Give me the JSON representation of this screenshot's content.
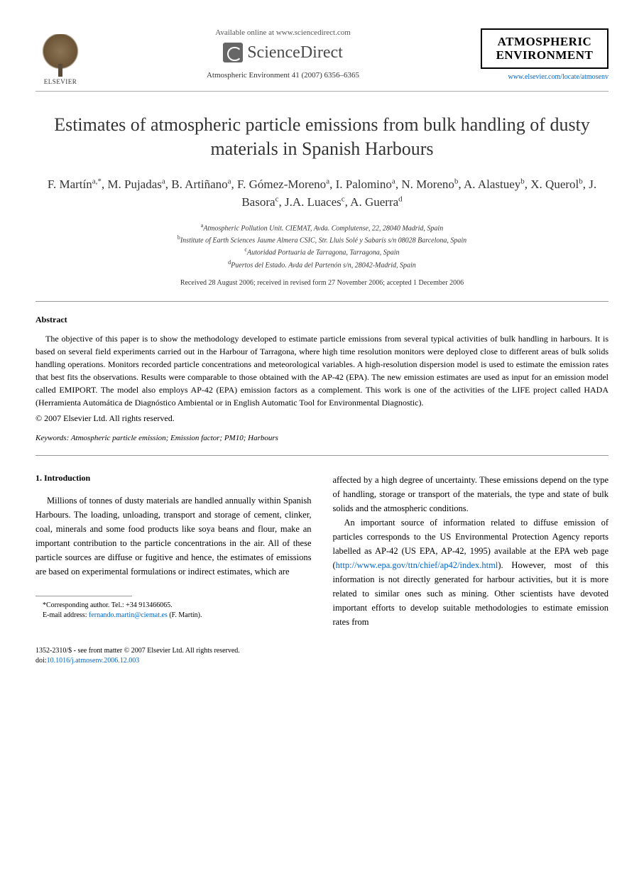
{
  "header": {
    "available_text": "Available online at www.sciencedirect.com",
    "sciencedirect_label": "ScienceDirect",
    "elsevier_label": "ELSEVIER",
    "citation": "Atmospheric Environment 41 (2007) 6356–6365",
    "journal_name_line1": "ATMOSPHERIC",
    "journal_name_line2": "ENVIRONMENT",
    "journal_url": "www.elsevier.com/locate/atmosenv"
  },
  "article": {
    "title": "Estimates of atmospheric particle emissions from bulk handling of dusty materials in Spanish Harbours",
    "authors_html": "F. Martín<sup>a,*</sup>, M. Pujadas<sup>a</sup>, B. Artiñano<sup>a</sup>, F. Gómez-Moreno<sup>a</sup>, I. Palomino<sup>a</sup>, N. Moreno<sup>b</sup>, A. Alastuey<sup>b</sup>, X. Querol<sup>b</sup>, J. Basora<sup>c</sup>, J.A. Luaces<sup>c</sup>, A. Guerra<sup>d</sup>",
    "affiliations": [
      {
        "sup": "a",
        "text": "Atmospheric Pollution Unit. CIEMAT, Avda. Complutense, 22, 28040 Madrid, Spain"
      },
      {
        "sup": "b",
        "text": "Institute of Earth Sciences Jaume Almera CSIC, Str. Lluis Solé y Sabarís s/n 08028 Barcelona, Spain"
      },
      {
        "sup": "c",
        "text": "Autoridad Portuaria de Tarragona, Tarragona, Spain"
      },
      {
        "sup": "d",
        "text": "Puertos del Estado. Avda del Partenón s/n, 28042-Madrid, Spain"
      }
    ],
    "dates": "Received 28 August 2006; received in revised form 27 November 2006; accepted 1 December 2006"
  },
  "abstract": {
    "heading": "Abstract",
    "text": "The objective of this paper is to show the methodology developed to estimate particle emissions from several typical activities of bulk handling in harbours. It is based on several field experiments carried out in the Harbour of Tarragona, where high time resolution monitors were deployed close to different areas of bulk solids handling operations. Monitors recorded particle concentrations and meteorological variables. A high-resolution dispersion model is used to estimate the emission rates that best fits the observations. Results were comparable to those obtained with the AP-42 (EPA). The new emission estimates are used as input for an emission model called EMIPORT. The model also employs AP-42 (EPA) emission factors as a complement. This work is one of the activities of the LIFE project called HADA (Herramienta Automática de Diagnóstico Ambiental or in English Automatic Tool for Environmental Diagnostic).",
    "copyright": "© 2007 Elsevier Ltd. All rights reserved."
  },
  "keywords": {
    "label": "Keywords:",
    "text": "Atmospheric particle emission; Emission factor; PM10; Harbours"
  },
  "introduction": {
    "heading": "1. Introduction",
    "col1_para1": "Millions of tonnes of dusty materials are handled annually within Spanish Harbours. The loading, unloading, transport and storage of cement, clinker, coal, minerals and some food products like soya beans and flour, make an important contribution to the particle concentrations in the air. All of these particle sources are diffuse or fugitive and hence, the estimates of emissions are based on experimental formulations or indirect estimates, which are",
    "col2_para1": "affected by a high degree of uncertainty. These emissions depend on the type of handling, storage or transport of the materials, the type and state of bulk solids and the atmospheric conditions.",
    "col2_para2_pre": "An important source of information related to diffuse emission of particles corresponds to the US Environmental Protection Agency reports labelled as AP-42 (US EPA, AP-42, 1995) available at the EPA web page (",
    "col2_link": "http://www.epa.gov/ttn/chief/ap42/index.html",
    "col2_para2_post": "). However, most of this information is not directly generated for harbour activities, but it is more related to similar ones such as mining. Other scientists have devoted important efforts to develop suitable methodologies to estimate emission rates from"
  },
  "footnote": {
    "corresponding": "*Corresponding author. Tel.: +34 913466065.",
    "email_label": "E-mail address:",
    "email": "fernando.martin@ciemat.es",
    "email_author": "(F. Martín)."
  },
  "footer": {
    "issn": "1352-2310/$ - see front matter © 2007 Elsevier Ltd. All rights reserved.",
    "doi_label": "doi:",
    "doi": "10.1016/j.atmosenv.2006.12.003"
  },
  "colors": {
    "text": "#000000",
    "link": "#0066cc",
    "divider": "#999999",
    "background": "#ffffff"
  },
  "typography": {
    "title_fontsize": 26,
    "author_fontsize": 17,
    "body_fontsize": 12.5,
    "abstract_fontsize": 12,
    "footnote_fontsize": 10,
    "font_family": "Georgia, Times New Roman, serif"
  }
}
